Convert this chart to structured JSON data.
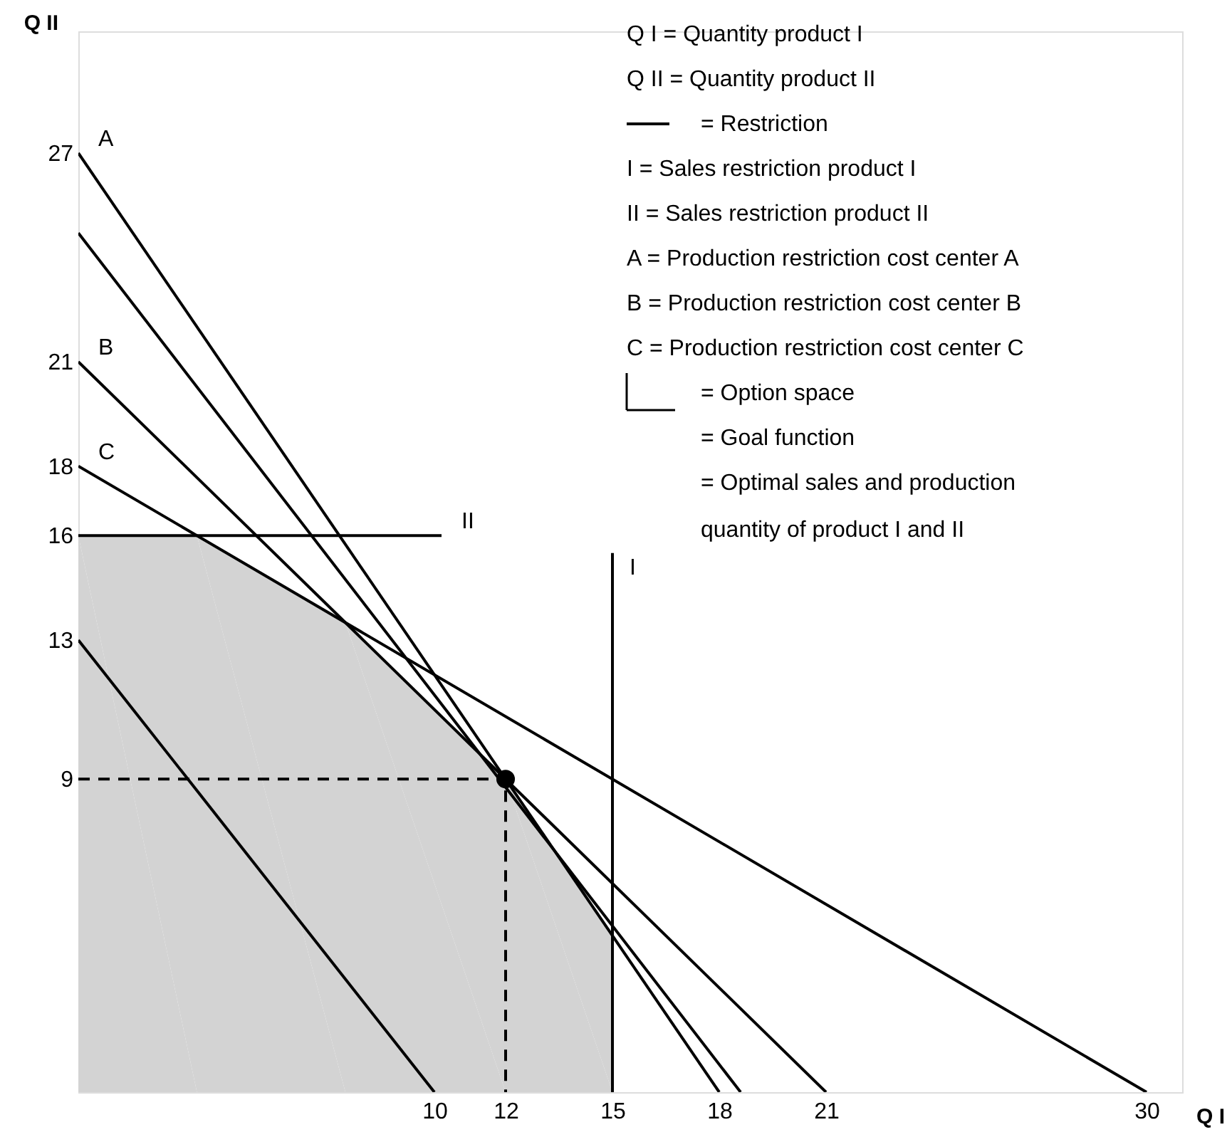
{
  "chart_data": {
    "type": "line",
    "xlabel": "Q I",
    "ylabel": "Q II",
    "xlim": [
      0,
      31
    ],
    "ylim": [
      0,
      30.5
    ],
    "xticks": [
      10,
      12,
      15,
      18,
      21,
      30
    ],
    "yticks": [
      9,
      13,
      16,
      18,
      21,
      27
    ],
    "line_style": "solid",
    "series": [
      {
        "type": "area",
        "color": "#d3d3d3",
        "x": [
          0,
          3.33,
          7.5,
          12,
          15
        ],
        "values": [
          16,
          16,
          13.5,
          9,
          4.5
        ]
      },
      {
        "name": "A",
        "color": "#000000",
        "x": [
          0,
          18
        ],
        "values": [
          27,
          0
        ]
      },
      {
        "name": "B",
        "color": "#000000",
        "x": [
          0,
          21
        ],
        "values": [
          21,
          0
        ]
      },
      {
        "name": "C",
        "color": "#000000",
        "x": [
          0,
          30
        ],
        "values": [
          18,
          0
        ]
      },
      {
        "name": "II",
        "color": "#000000",
        "x": [
          10.2,
          0
        ],
        "values": [
          16,
          16
        ]
      },
      {
        "name": "I",
        "color": "#000000",
        "x": [
          15,
          15
        ],
        "values": [
          15.5,
          0
        ]
      },
      {
        "color": "#000000",
        "x": [
          0,
          18.6
        ],
        "values": [
          24.7,
          0
        ]
      },
      {
        "color": "#000000",
        "x": [
          0,
          10
        ],
        "values": [
          13,
          0
        ]
      },
      {
        "color": "#000000",
        "line_style": "dashed",
        "x": [
          0,
          12,
          12
        ],
        "values": [
          9,
          9,
          0
        ]
      },
      {
        "type": "scatter",
        "color": "#000000",
        "x": [
          12
        ],
        "values": [
          9
        ]
      }
    ],
    "annotations": [
      "Q I = Quantity product I",
      "Q II = Quantity product II",
      "= Restriction",
      "I = Sales restriction product I",
      "II = Sales restriction product II",
      "A = Production restriction cost center A",
      "B = Production restriction cost center B",
      "C = Production restriction cost center C",
      "= Option space",
      "= Goal function",
      "= Optimal sales and production\nquantity of product I and II"
    ]
  }
}
